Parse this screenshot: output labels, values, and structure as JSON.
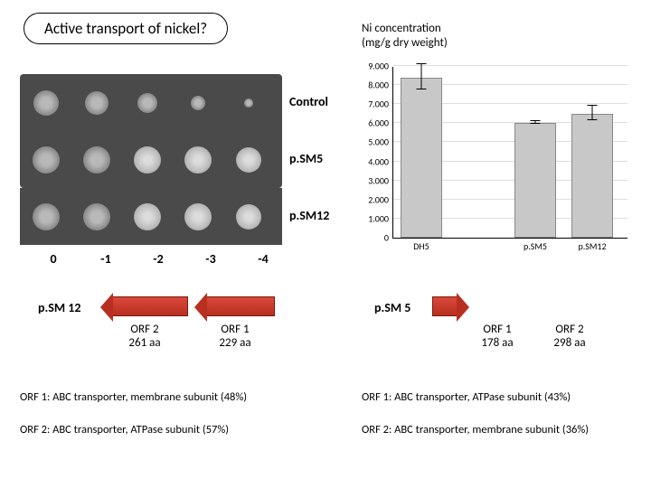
{
  "title": "Active transport of nickel?",
  "chart_title": "Ni concentration\n(mg/g dry weight)",
  "spot_assay": {
    "rows": [
      {
        "label": "Control",
        "spots": [
          28,
          26,
          22,
          16,
          10
        ]
      },
      {
        "label": "p.SM5",
        "spots": [
          30,
          30,
          30,
          30,
          28
        ]
      },
      {
        "label": "p.SM12",
        "spots": [
          30,
          30,
          30,
          30,
          28
        ]
      }
    ],
    "dilutions": [
      "0",
      "-1",
      "-2",
      "-3",
      "-4"
    ]
  },
  "bar_chart": {
    "ymax": 9000,
    "ytick_step": 1000,
    "categories": [
      "DH5",
      "",
      "p.SM5",
      "p.SM12"
    ],
    "values": [
      8400,
      0,
      6000,
      6500
    ],
    "errors": [
      700,
      0,
      100,
      400
    ],
    "bar_color": "#c8c8c8",
    "grid_color": "#dddddd"
  },
  "orf_left": {
    "cluster": "p.SM 12",
    "orfs": [
      {
        "name": "ORF 2",
        "len": "261 aa"
      },
      {
        "name": "ORF 1",
        "len": "229 aa"
      }
    ]
  },
  "orf_right": {
    "cluster": "p.SM 5",
    "orfs": [
      {
        "name": "ORF 1",
        "len": "178 aa"
      },
      {
        "name": "ORF 2",
        "len": "298 aa"
      }
    ]
  },
  "footnotes_left": [
    "ORF 1: ABC transporter, membrane subunit (48%)",
    "ORF 2: ABC transporter, ATPase subunit (57%)"
  ],
  "footnotes_right": [
    "ORF 1: ABC transporter, ATPase subunit (43%)",
    "ORF 2: ABC transporter, membrane subunit (36%)"
  ]
}
